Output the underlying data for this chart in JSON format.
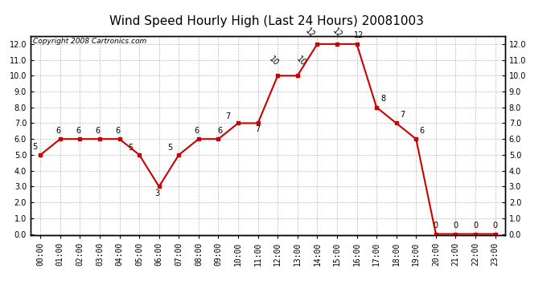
{
  "title": "Wind Speed Hourly High (Last 24 Hours) 20081003",
  "copyright": "Copyright 2008 Cartronics.com",
  "hours": [
    "00:00",
    "01:00",
    "02:00",
    "03:00",
    "04:00",
    "05:00",
    "06:00",
    "07:00",
    "08:00",
    "09:00",
    "10:00",
    "11:00",
    "12:00",
    "13:00",
    "14:00",
    "15:00",
    "16:00",
    "17:00",
    "18:00",
    "19:00",
    "20:00",
    "21:00",
    "22:00",
    "23:00"
  ],
  "values": [
    5,
    6,
    6,
    6,
    6,
    5,
    3,
    5,
    6,
    6,
    7,
    7,
    10,
    10,
    12,
    12,
    12,
    8,
    7,
    6,
    0,
    0,
    0,
    0
  ],
  "line_color": "#cc0000",
  "marker_color": "#cc0000",
  "bg_color": "#ffffff",
  "grid_color": "#aaaaaa",
  "ylim": [
    -0.05,
    12.5
  ],
  "yticks": [
    0.0,
    1.0,
    2.0,
    3.0,
    4.0,
    5.0,
    6.0,
    7.0,
    8.0,
    9.0,
    10.0,
    11.0,
    12.0
  ],
  "title_fontsize": 11,
  "label_fontsize": 7,
  "copyright_fontsize": 6.5,
  "tick_fontsize": 7
}
